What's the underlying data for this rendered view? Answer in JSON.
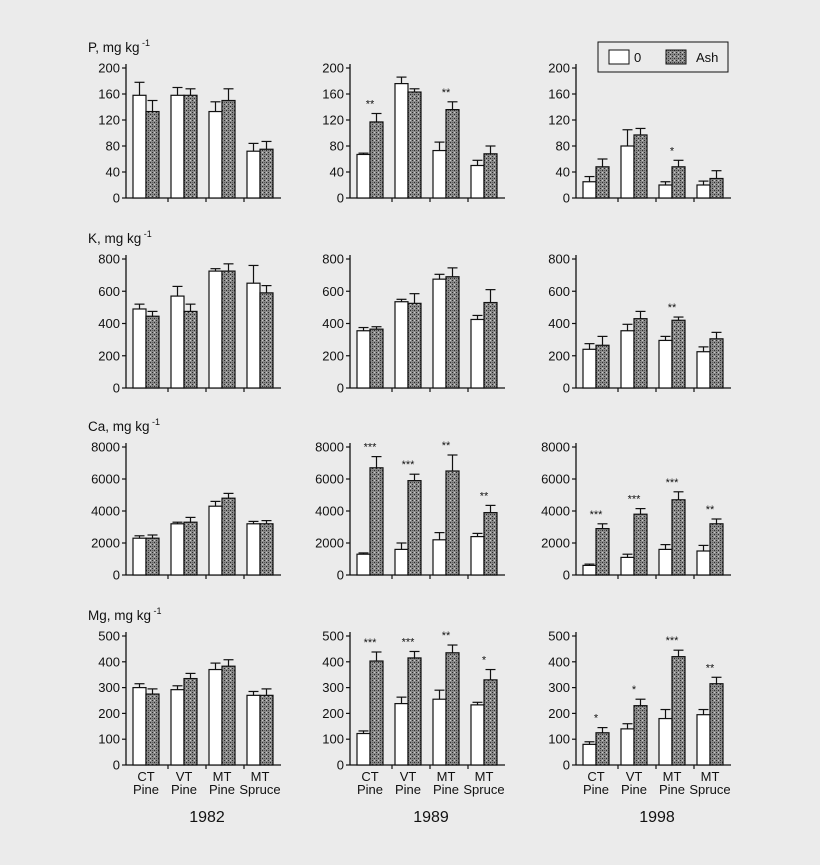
{
  "figure": {
    "years": [
      "1982",
      "1989",
      "1998"
    ],
    "category_lines": [
      [
        "CT",
        "Pine"
      ],
      [
        "VT",
        "Pine"
      ],
      [
        "MT",
        "Pine"
      ],
      [
        "MT",
        "Spruce"
      ]
    ],
    "legend": [
      "0",
      "Ash"
    ],
    "colors": {
      "background": "#ebebeb",
      "control_fill": "#ffffff",
      "ash_fill": "#7a7a7a",
      "ink": "#111111"
    }
  },
  "chart_data": [
    {
      "type": "bar",
      "row": 0,
      "col": 0,
      "year": "1982",
      "ylabel": "P, mg kg",
      "ylabel_sup": "-1",
      "ylim": [
        0,
        200
      ],
      "yticks": [
        0,
        40,
        80,
        120,
        160,
        200
      ],
      "categories": [
        "CT Pine",
        "VT Pine",
        "MT Pine",
        "MT Spruce"
      ],
      "series": [
        {
          "name": "0",
          "values": [
            158,
            158,
            133,
            72
          ],
          "errors": [
            20,
            12,
            15,
            12
          ]
        },
        {
          "name": "Ash",
          "values": [
            133,
            158,
            150,
            75
          ],
          "errors": [
            17,
            10,
            18,
            12
          ]
        }
      ],
      "significance": [
        "",
        "",
        "",
        ""
      ]
    },
    {
      "type": "bar",
      "row": 0,
      "col": 1,
      "year": "1989",
      "ylabel": "",
      "ylim": [
        0,
        200
      ],
      "yticks": [
        0,
        40,
        80,
        120,
        160,
        200
      ],
      "categories": [
        "CT Pine",
        "VT Pine",
        "MT Pine",
        "MT Spruce"
      ],
      "series": [
        {
          "name": "0",
          "values": [
            67,
            176,
            73,
            50
          ],
          "errors": [
            2,
            10,
            13,
            8
          ]
        },
        {
          "name": "Ash",
          "values": [
            117,
            163,
            136,
            68
          ],
          "errors": [
            13,
            5,
            12,
            12
          ]
        }
      ],
      "significance": [
        "**",
        "",
        "**",
        ""
      ]
    },
    {
      "type": "bar",
      "row": 0,
      "col": 2,
      "year": "1998",
      "ylabel": "",
      "ylim": [
        0,
        200
      ],
      "yticks": [
        0,
        40,
        80,
        120,
        160,
        200
      ],
      "categories": [
        "CT Pine",
        "VT Pine",
        "MT Pine",
        "MT Spruce"
      ],
      "series": [
        {
          "name": "0",
          "values": [
            25,
            80,
            20,
            20
          ],
          "errors": [
            8,
            25,
            5,
            6
          ]
        },
        {
          "name": "Ash",
          "values": [
            48,
            97,
            48,
            30
          ],
          "errors": [
            12,
            10,
            10,
            12
          ]
        }
      ],
      "significance": [
        "",
        "",
        "*",
        ""
      ]
    },
    {
      "type": "bar",
      "row": 1,
      "col": 0,
      "year": "1982",
      "ylabel": "K, mg kg",
      "ylabel_sup": "-1",
      "ylim": [
        0,
        800
      ],
      "yticks": [
        0,
        200,
        400,
        600,
        800
      ],
      "categories": [
        "CT Pine",
        "VT Pine",
        "MT Pine",
        "MT Spruce"
      ],
      "series": [
        {
          "name": "0",
          "values": [
            490,
            570,
            725,
            650
          ],
          "errors": [
            30,
            60,
            15,
            110
          ]
        },
        {
          "name": "Ash",
          "values": [
            445,
            475,
            725,
            590
          ],
          "errors": [
            30,
            45,
            45,
            45
          ]
        }
      ],
      "significance": [
        "",
        "",
        "",
        ""
      ]
    },
    {
      "type": "bar",
      "row": 1,
      "col": 1,
      "year": "1989",
      "ylabel": "",
      "ylim": [
        0,
        800
      ],
      "yticks": [
        0,
        200,
        400,
        600,
        800
      ],
      "categories": [
        "CT Pine",
        "VT Pine",
        "MT Pine",
        "MT Spruce"
      ],
      "series": [
        {
          "name": "0",
          "values": [
            355,
            535,
            675,
            425
          ],
          "errors": [
            20,
            15,
            30,
            25
          ]
        },
        {
          "name": "Ash",
          "values": [
            365,
            525,
            690,
            530
          ],
          "errors": [
            15,
            60,
            55,
            80
          ]
        }
      ],
      "significance": [
        "",
        "",
        "",
        ""
      ]
    },
    {
      "type": "bar",
      "row": 1,
      "col": 2,
      "year": "1998",
      "ylabel": "",
      "ylim": [
        0,
        800
      ],
      "yticks": [
        0,
        200,
        400,
        600,
        800
      ],
      "categories": [
        "CT Pine",
        "VT Pine",
        "MT Pine",
        "MT Spruce"
      ],
      "series": [
        {
          "name": "0",
          "values": [
            240,
            355,
            295,
            225
          ],
          "errors": [
            35,
            40,
            25,
            30
          ]
        },
        {
          "name": "Ash",
          "values": [
            265,
            430,
            420,
            305
          ],
          "errors": [
            55,
            45,
            20,
            40
          ]
        }
      ],
      "significance": [
        "",
        "",
        "**",
        ""
      ]
    },
    {
      "type": "bar",
      "row": 2,
      "col": 0,
      "year": "1982",
      "ylabel": "Ca, mg kg",
      "ylabel_sup": "-1",
      "ylim": [
        0,
        8000
      ],
      "yticks": [
        0,
        2000,
        4000,
        6000,
        8000
      ],
      "categories": [
        "CT Pine",
        "VT Pine",
        "MT Pine",
        "MT Spruce"
      ],
      "series": [
        {
          "name": "0",
          "values": [
            2300,
            3200,
            4300,
            3200
          ],
          "errors": [
            150,
            100,
            300,
            150
          ]
        },
        {
          "name": "Ash",
          "values": [
            2300,
            3300,
            4800,
            3200
          ],
          "errors": [
            200,
            300,
            300,
            200
          ]
        }
      ],
      "significance": [
        "",
        "",
        "",
        ""
      ]
    },
    {
      "type": "bar",
      "row": 2,
      "col": 1,
      "year": "1989",
      "ylabel": "",
      "ylim": [
        0,
        8000
      ],
      "yticks": [
        0,
        2000,
        4000,
        6000,
        8000
      ],
      "categories": [
        "CT Pine",
        "VT Pine",
        "MT Pine",
        "MT Spruce"
      ],
      "series": [
        {
          "name": "0",
          "values": [
            1300,
            1600,
            2200,
            2400
          ],
          "errors": [
            80,
            400,
            450,
            200
          ]
        },
        {
          "name": "Ash",
          "values": [
            6700,
            5900,
            6500,
            3900
          ],
          "errors": [
            700,
            400,
            1000,
            450
          ]
        }
      ],
      "significance": [
        "***",
        "***",
        "**",
        "**"
      ]
    },
    {
      "type": "bar",
      "row": 2,
      "col": 2,
      "year": "1998",
      "ylabel": "",
      "ylim": [
        0,
        8000
      ],
      "yticks": [
        0,
        2000,
        4000,
        6000,
        8000
      ],
      "categories": [
        "CT Pine",
        "VT Pine",
        "MT Pine",
        "MT Spruce"
      ],
      "series": [
        {
          "name": "0",
          "values": [
            600,
            1100,
            1600,
            1500
          ],
          "errors": [
            80,
            200,
            300,
            350
          ]
        },
        {
          "name": "Ash",
          "values": [
            2900,
            3800,
            4700,
            3200
          ],
          "errors": [
            300,
            350,
            500,
            300
          ]
        }
      ],
      "significance": [
        "***",
        "***",
        "***",
        "**"
      ]
    },
    {
      "type": "bar",
      "row": 3,
      "col": 0,
      "year": "1982",
      "ylabel": "Mg, mg kg",
      "ylabel_sup": "-1",
      "ylim": [
        0,
        500
      ],
      "yticks": [
        0,
        100,
        200,
        300,
        400,
        500
      ],
      "categories": [
        "CT Pine",
        "VT Pine",
        "MT Pine",
        "MT Spruce"
      ],
      "series": [
        {
          "name": "0",
          "values": [
            300,
            292,
            370,
            270
          ],
          "errors": [
            15,
            15,
            25,
            15
          ]
        },
        {
          "name": "Ash",
          "values": [
            275,
            335,
            383,
            270
          ],
          "errors": [
            20,
            20,
            25,
            25
          ]
        }
      ],
      "significance": [
        "",
        "",
        "",
        ""
      ]
    },
    {
      "type": "bar",
      "row": 3,
      "col": 1,
      "year": "1989",
      "ylabel": "",
      "ylim": [
        0,
        500
      ],
      "yticks": [
        0,
        100,
        200,
        300,
        400,
        500
      ],
      "categories": [
        "CT Pine",
        "VT Pine",
        "MT Pine",
        "MT Spruce"
      ],
      "series": [
        {
          "name": "0",
          "values": [
            122,
            238,
            255,
            233
          ],
          "errors": [
            10,
            25,
            35,
            10
          ]
        },
        {
          "name": "Ash",
          "values": [
            403,
            415,
            435,
            330
          ],
          "errors": [
            35,
            25,
            30,
            40
          ]
        }
      ],
      "significance": [
        "***",
        "***",
        "**",
        "*"
      ]
    },
    {
      "type": "bar",
      "row": 3,
      "col": 2,
      "year": "1998",
      "ylabel": "",
      "ylim": [
        0,
        500
      ],
      "yticks": [
        0,
        100,
        200,
        300,
        400,
        500
      ],
      "categories": [
        "CT Pine",
        "VT Pine",
        "MT Pine",
        "MT Spruce"
      ],
      "series": [
        {
          "name": "0",
          "values": [
            80,
            140,
            180,
            195
          ],
          "errors": [
            10,
            20,
            35,
            20
          ]
        },
        {
          "name": "Ash",
          "values": [
            125,
            230,
            420,
            315
          ],
          "errors": [
            20,
            25,
            25,
            25
          ]
        }
      ],
      "significance": [
        "*",
        "*",
        "***",
        "**"
      ]
    }
  ]
}
